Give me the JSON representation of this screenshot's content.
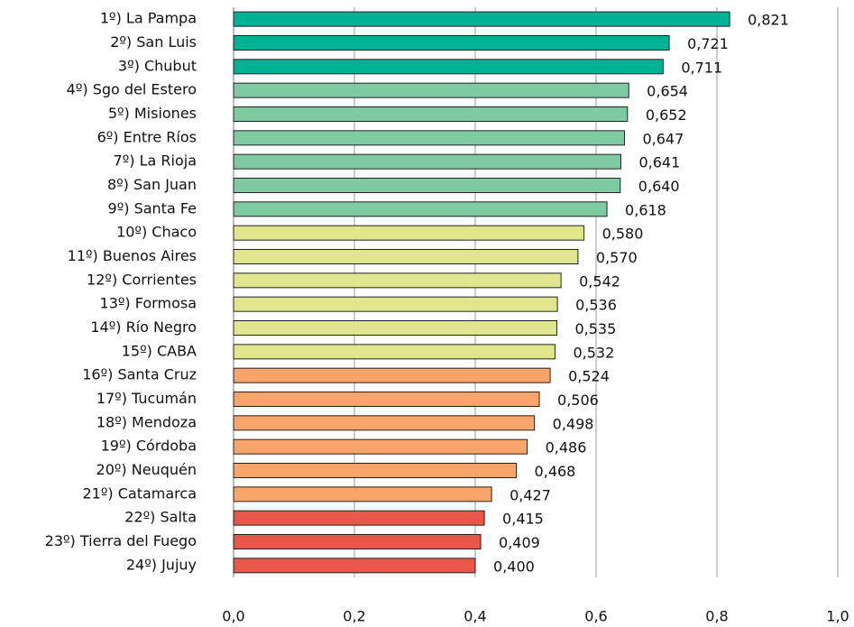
{
  "chart_data": {
    "type": "barh",
    "categories": [
      "1º) La Pampa",
      "2º) San Luis",
      "3º) Chubut",
      "4º) Sgo del Estero",
      "5º) Misiones",
      "6º) Entre Ríos",
      "7º) La Rioja",
      "8º) San Juan",
      "9º) Santa Fe",
      "10º) Chaco",
      "11º) Buenos Aires",
      "12º) Corrientes",
      "13º) Formosa",
      "14º) Río Negro",
      "15º) CABA",
      "16º) Santa Cruz",
      "17º) Tucumán",
      "18º) Mendoza",
      "19º) Córdoba",
      "20º) Neuquén",
      "21º) Catamarca",
      "22º) Salta",
      "23º) Tierra del Fuego",
      "24º) Jujuy"
    ],
    "values": [
      0.821,
      0.721,
      0.711,
      0.654,
      0.652,
      0.647,
      0.641,
      0.64,
      0.618,
      0.58,
      0.57,
      0.542,
      0.536,
      0.535,
      0.532,
      0.524,
      0.506,
      0.498,
      0.486,
      0.468,
      0.427,
      0.415,
      0.409,
      0.4
    ],
    "value_labels": [
      "0,821",
      "0,721",
      "0,711",
      "0,654",
      "0,652",
      "0,647",
      "0,641",
      "0,640",
      "0,618",
      "0,580",
      "0,570",
      "0,542",
      "0,536",
      "0,535",
      "0,532",
      "0,524",
      "0,506",
      "0,498",
      "0,486",
      "0,468",
      "0,427",
      "0,415",
      "0,409",
      "0,400"
    ],
    "colors": [
      "#00b294",
      "#00b294",
      "#00b294",
      "#7ecba1",
      "#7ecba1",
      "#7ecba1",
      "#7ecba1",
      "#7ecba1",
      "#7ecba1",
      "#dfe68c",
      "#dfe68c",
      "#dfe68c",
      "#dfe68c",
      "#dfe68c",
      "#dfe68c",
      "#f9a46b",
      "#f9a46b",
      "#f9a46b",
      "#f9a46b",
      "#f9a46b",
      "#f9a46b",
      "#e8574a",
      "#e8574a",
      "#e8574a"
    ],
    "xlim": [
      0,
      1
    ],
    "xticks": [
      {
        "value": 0,
        "label": "0,0"
      },
      {
        "value": 0.2,
        "label": "0,2"
      },
      {
        "value": 0.4,
        "label": "0,4"
      },
      {
        "value": 0.6,
        "label": "0,6"
      },
      {
        "value": 0.8,
        "label": "0,8"
      },
      {
        "value": 1,
        "label": "1,0"
      }
    ],
    "grid": true
  }
}
